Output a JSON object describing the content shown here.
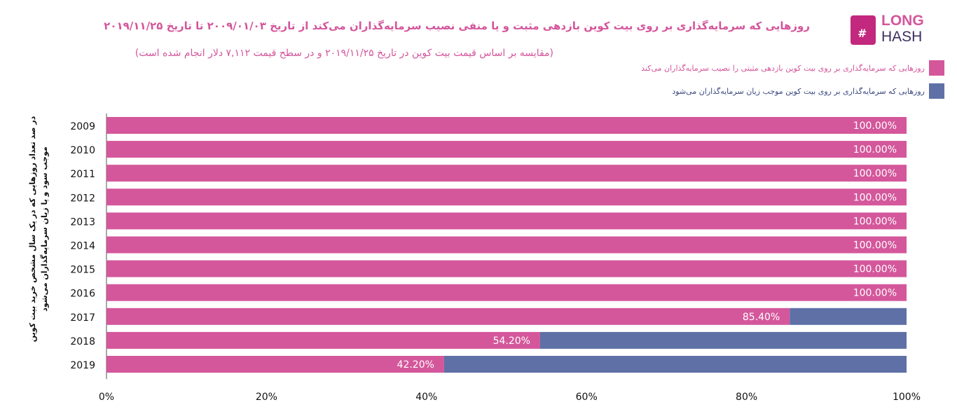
{
  "logo": {
    "line1": "LONG",
    "line2": "HASH",
    "symbol": "#"
  },
  "chart_data": {
    "type": "bar",
    "orientation": "horizontal",
    "stacked": true,
    "title": "روزهایی که سرمایه‌گذاری بر روی بیت کوین بازدهی مثبت و  یا منفی نصیب سرمایه‌گذاران می‌کند  از تاریخ ۲۰۰۹/۰۱/۰۳ تا تاریخ ۲۰۱۹/۱۱/۲۵",
    "subtitle": "(مقایسه بر اساس قیمت بیت کوین در تاریخ ۲۰۱۹/۱۱/۲۵ و در سطح قیمت ۷,۱۱۲ دلار انجام شده است)",
    "ylabel": "در صد تعداد روزهایی که در یک سال مشخص خرید بیت کوین موجب سود و یا زیان سرمایه‌گذاران می‌شود",
    "xlabel": "",
    "categories": [
      "2009",
      "2010",
      "2011",
      "2012",
      "2013",
      "2014",
      "2015",
      "2016",
      "2017",
      "2018",
      "2019"
    ],
    "series": [
      {
        "name": "روزهایی که سرمایه‌گذاری بر روی بیت کوین بازدهی مثبتی را نصیب سرمایه‌گذاران می‌کند",
        "color": "#d4579b",
        "values": [
          100,
          100,
          100,
          100,
          100,
          100,
          100,
          100,
          85.4,
          54.2,
          42.2
        ],
        "labels": [
          "100.00%",
          "100.00%",
          "100.00%",
          "100.00%",
          "100.00%",
          "100.00%",
          "100.00%",
          "100.00%",
          "85.40%",
          "54.20%",
          "42.20%"
        ]
      },
      {
        "name": "روزهایی که سرمایه‌گذاری بر روی بیت کوین موجب زیان سرمایه‌گذاران می‌شود",
        "color": "#5e70a6",
        "values": [
          0,
          0,
          0,
          0,
          0,
          0,
          0,
          0,
          14.6,
          45.8,
          57.8
        ]
      }
    ],
    "xlim": [
      0,
      100
    ],
    "xticks": [
      "0%",
      "20%",
      "40%",
      "60%",
      "80%",
      "100%"
    ],
    "legend": "top-right",
    "grid": false
  }
}
